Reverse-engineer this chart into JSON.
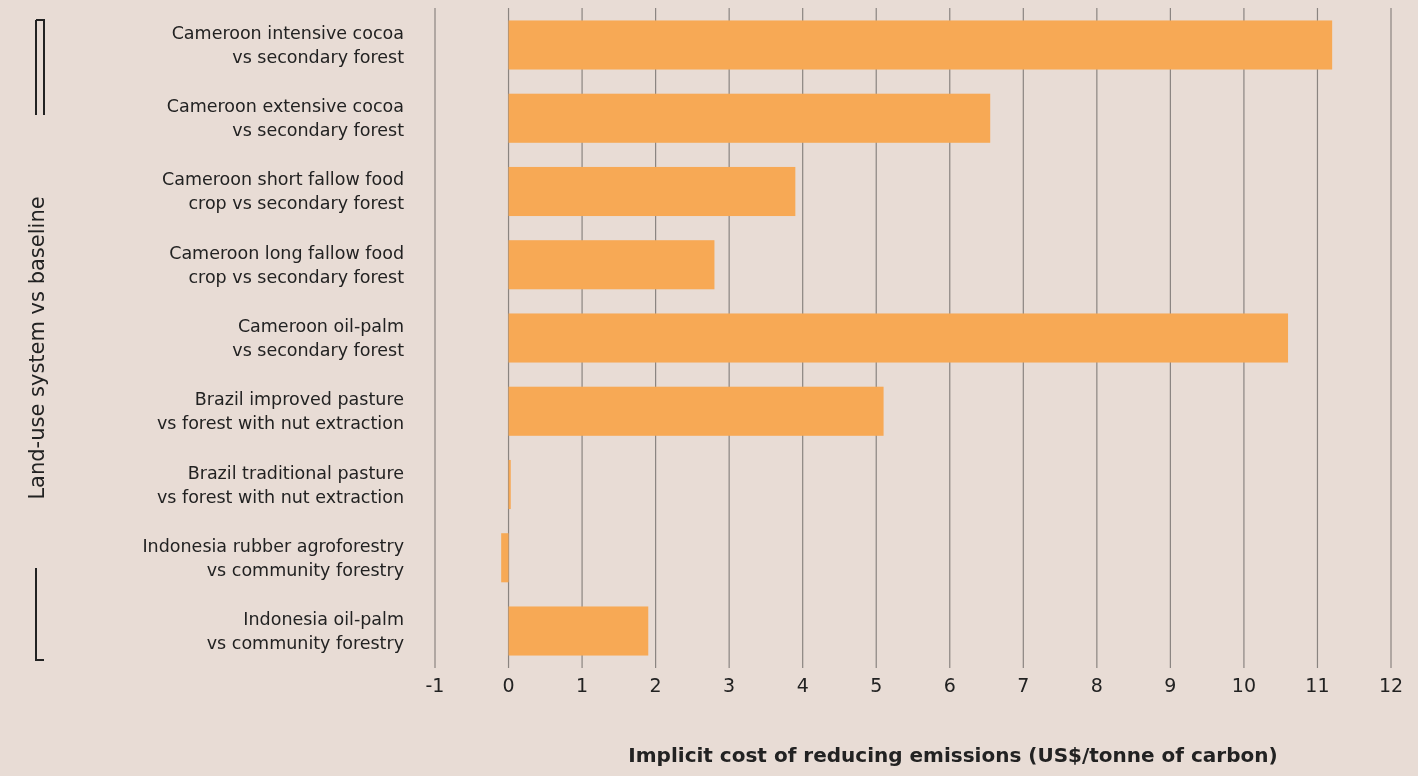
{
  "chart_data": {
    "type": "bar",
    "orientation": "horizontal",
    "xlabel": "Implicit cost of reducing emissions (US$/tonne of carbon)",
    "ylabel": "Land-use system vs baseline",
    "categories": [
      "Cameroon intensive cocoa\nvs secondary forest",
      "Cameroon extensive cocoa\nvs secondary forest",
      "Cameroon short fallow food\ncrop vs secondary forest",
      "Cameroon long fallow food\ncrop vs secondary forest",
      "Cameroon oil-palm\nvs secondary forest",
      "Brazil improved pasture\nvs forest with nut extraction",
      "Brazil traditional pasture\nvs forest with nut extraction",
      "Indonesia rubber agroforestry\nvs community forestry",
      "Indonesia oil-palm\nvs community forestry"
    ],
    "values": [
      11.2,
      6.55,
      3.9,
      2.8,
      10.6,
      5.1,
      0.03,
      -0.1,
      1.9
    ],
    "color": "#f7a955",
    "xlim": [
      -1,
      12
    ],
    "xticks": [
      -1,
      0,
      1,
      2,
      3,
      4,
      5,
      6,
      7,
      8,
      9,
      10,
      11,
      12
    ],
    "grid": "x"
  }
}
